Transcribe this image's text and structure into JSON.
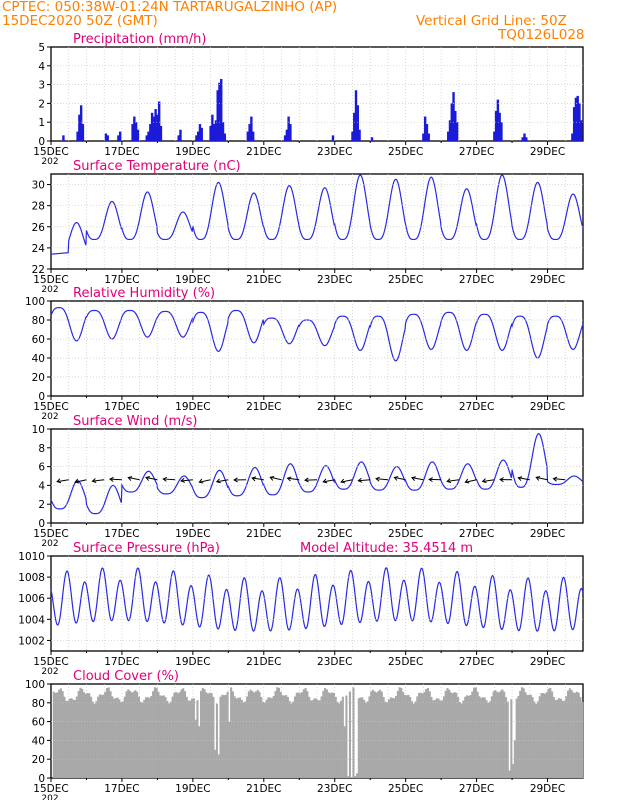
{
  "header": {
    "line1": "CPTEC:   050:38W-01:24N  TARTARUGALZINHO (AP)",
    "line2": "15DEC2020 50Z (GMT)",
    "grid_note": "Vertical Grid Line: 50Z",
    "code": "TQ0126L028"
  },
  "colors": {
    "title": "#e0007a",
    "header": "#ff8000",
    "line": "#2a2ae6",
    "bar": "#1a1ad8",
    "cloud": "#a8a8a8",
    "arrow": "#000000"
  },
  "x_ticks": [
    "15DEC",
    "17DEC",
    "19DEC",
    "21DEC",
    "23DEC",
    "25DEC",
    "27DEC",
    "29DEC"
  ],
  "x_tick_days": [
    0,
    2,
    4,
    6,
    8,
    10,
    12,
    14
  ],
  "x_year_stub": "202",
  "chart_data": [
    {
      "id": "precip",
      "type": "bar",
      "title": "Precipitation (mm/h)",
      "ylim": [
        0,
        5
      ],
      "yticks": [
        0,
        1,
        2,
        3,
        4,
        5
      ],
      "x_unit": "days since 15DEC2020 00Z",
      "events": [
        [
          0.35,
          0.3
        ],
        [
          0.75,
          0.5
        ],
        [
          0.8,
          1.4
        ],
        [
          0.85,
          1.9
        ],
        [
          0.9,
          0.9
        ],
        [
          1.55,
          0.4
        ],
        [
          1.6,
          0.3
        ],
        [
          1.9,
          0.3
        ],
        [
          1.95,
          0.5
        ],
        [
          2.3,
          0.9
        ],
        [
          2.35,
          1.3
        ],
        [
          2.4,
          1.0
        ],
        [
          2.45,
          0.6
        ],
        [
          2.7,
          0.3
        ],
        [
          2.75,
          0.5
        ],
        [
          2.8,
          0.9
        ],
        [
          2.85,
          1.5
        ],
        [
          2.9,
          1.3
        ],
        [
          2.95,
          1.7
        ],
        [
          3.0,
          1.4
        ],
        [
          3.05,
          2.1
        ],
        [
          3.1,
          0.8
        ],
        [
          3.6,
          0.3
        ],
        [
          3.65,
          0.6
        ],
        [
          4.1,
          0.3
        ],
        [
          4.15,
          0.5
        ],
        [
          4.2,
          0.9
        ],
        [
          4.25,
          0.7
        ],
        [
          4.5,
          0.8
        ],
        [
          4.55,
          1.4
        ],
        [
          4.6,
          0.9
        ],
        [
          4.65,
          1.1
        ],
        [
          4.7,
          2.7
        ],
        [
          4.75,
          3.1
        ],
        [
          4.8,
          3.3
        ],
        [
          4.85,
          1.0
        ],
        [
          4.9,
          0.4
        ],
        [
          5.55,
          0.5
        ],
        [
          5.6,
          0.9
        ],
        [
          5.65,
          1.3
        ],
        [
          5.7,
          0.5
        ],
        [
          6.6,
          0.3
        ],
        [
          6.65,
          0.6
        ],
        [
          6.7,
          1.3
        ],
        [
          6.75,
          0.9
        ],
        [
          7.95,
          0.3
        ],
        [
          8.5,
          0.5
        ],
        [
          8.55,
          1.5
        ],
        [
          8.6,
          2.7
        ],
        [
          8.65,
          1.9
        ],
        [
          8.7,
          0.6
        ],
        [
          9.05,
          0.2
        ],
        [
          10.5,
          0.4
        ],
        [
          10.55,
          1.3
        ],
        [
          10.6,
          0.9
        ],
        [
          10.65,
          0.4
        ],
        [
          11.2,
          0.5
        ],
        [
          11.25,
          1.1
        ],
        [
          11.3,
          2.0
        ],
        [
          11.35,
          2.6
        ],
        [
          11.4,
          1.6
        ],
        [
          11.45,
          1.0
        ],
        [
          12.5,
          0.5
        ],
        [
          12.55,
          1.6
        ],
        [
          12.6,
          2.2
        ],
        [
          12.65,
          1.5
        ],
        [
          12.7,
          1.0
        ],
        [
          13.3,
          0.2
        ],
        [
          13.35,
          0.4
        ],
        [
          13.4,
          0.2
        ],
        [
          14.7,
          0.4
        ],
        [
          14.75,
          1.8
        ],
        [
          14.8,
          2.3
        ],
        [
          14.85,
          2.4
        ],
        [
          14.9,
          2.0
        ],
        [
          14.95,
          1.1
        ]
      ]
    },
    {
      "id": "temp",
      "type": "line",
      "title": "Surface Temperature (nC)",
      "ylim": [
        22,
        31
      ],
      "yticks": [
        22,
        24,
        26,
        28,
        30
      ],
      "params": {
        "base": 24.8,
        "amps": [
          26.4,
          28.4,
          29.3,
          27.4,
          30.2,
          29.2,
          29.9,
          29.7,
          30.9,
          30.5,
          30.7,
          29.6,
          30.9,
          30.2,
          29.1
        ],
        "early_base": 23.4
      }
    },
    {
      "id": "rh",
      "type": "line",
      "title": "Relative Humidity (%)",
      "ylim": [
        0,
        100
      ],
      "yticks": [
        0,
        20,
        40,
        60,
        80,
        100
      ],
      "params": {
        "hi": [
          93,
          90,
          90,
          89,
          88,
          90,
          82,
          80,
          84,
          84,
          86,
          88,
          86,
          84,
          84
        ],
        "lo": [
          58,
          60,
          62,
          62,
          47,
          56,
          55,
          53,
          48,
          37,
          49,
          48,
          48,
          40,
          49
        ]
      }
    },
    {
      "id": "wind",
      "type": "line",
      "title": "Surface Wind (m/s)",
      "ylim": [
        0,
        10
      ],
      "yticks": [
        0,
        2,
        4,
        6,
        8,
        10
      ],
      "params": {
        "hi": [
          4.5,
          4.0,
          5.5,
          5.0,
          5.6,
          5.9,
          6.3,
          6.1,
          6.5,
          6.0,
          6.5,
          6.3,
          6.7,
          9.5,
          5.0
        ],
        "lo": [
          1.5,
          1.0,
          3.3,
          3.1,
          2.7,
          2.9,
          3.0,
          3.3,
          3.6,
          3.5,
          3.5,
          3.6,
          3.6,
          3.8,
          4.1
        ]
      },
      "arrows_label": "wind vectors"
    },
    {
      "id": "press",
      "type": "line",
      "title": "Surface Pressure (hPa)",
      "annotation": "Model Altitude: 35.4514  m",
      "ylim": [
        1001,
        1010
      ],
      "yticks": [
        1002,
        1004,
        1006,
        1008,
        1010
      ],
      "params": {
        "mean": 1005.6,
        "semi": 2.2,
        "day": 0.6
      }
    },
    {
      "id": "cloud",
      "type": "area",
      "title": "Cloud Cover (%)",
      "ylim": [
        0,
        100
      ],
      "yticks": [
        0,
        20,
        40,
        60,
        80,
        100
      ],
      "params": {
        "typical": 88,
        "drops": [
          [
            4.05,
            62
          ],
          [
            4.15,
            55
          ],
          [
            4.6,
            30
          ],
          [
            4.7,
            25
          ],
          [
            5.0,
            60
          ],
          [
            8.25,
            55
          ],
          [
            8.35,
            2
          ],
          [
            8.45,
            1
          ],
          [
            8.55,
            2
          ],
          [
            8.6,
            5
          ],
          [
            12.9,
            8
          ],
          [
            13.0,
            15
          ],
          [
            13.05,
            40
          ]
        ]
      }
    }
  ]
}
